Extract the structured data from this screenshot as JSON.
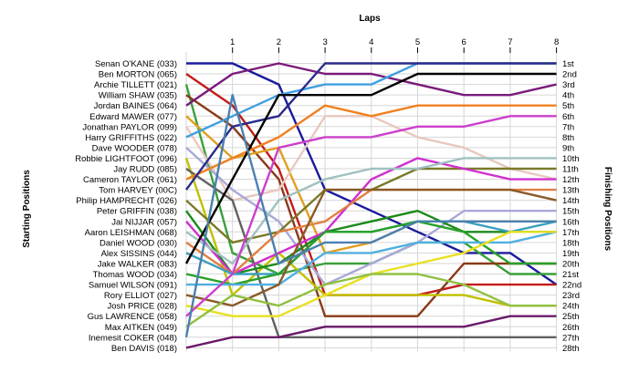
{
  "chart_data": {
    "type": "line",
    "title": "Laps",
    "ylabel_left": "Starting Positions",
    "ylabel_right": "Finishing Positions",
    "x_ticks": [
      "1",
      "2",
      "3",
      "4",
      "5",
      "6",
      "7",
      "8"
    ],
    "finish_labels": [
      "1st",
      "2nd",
      "3rd",
      "4th",
      "5th",
      "6th",
      "7th",
      "8th",
      "9th",
      "10th",
      "11th",
      "12th",
      "13th",
      "14th",
      "15th",
      "16th",
      "17th",
      "18th",
      "19th",
      "20th",
      "21st",
      "22nd",
      "23rd",
      "24th",
      "25th",
      "26th",
      "27th",
      "28th"
    ],
    "finish_label_positions": [
      1,
      2,
      3,
      4,
      5,
      6,
      7,
      8,
      9,
      10,
      11,
      12,
      13,
      14,
      15,
      16,
      17,
      18,
      19,
      20,
      21,
      22,
      23,
      24,
      25,
      26,
      27,
      28
    ],
    "drivers": [
      {
        "name": "Senan O'KANE (033)",
        "color": "#1a1a9e",
        "positions": [
          1,
          1,
          3,
          13,
          15,
          17,
          19,
          19,
          22
        ]
      },
      {
        "name": "Ben MORTON (065)",
        "color": "#c41a1a",
        "positions": [
          2,
          5,
          11,
          23,
          23,
          23,
          22,
          22,
          22
        ]
      },
      {
        "name": "Archie TILLETT (021)",
        "color": "#3aa03a",
        "positions": [
          3,
          19,
          21,
          20,
          20,
          18,
          18,
          21,
          21
        ]
      },
      {
        "name": "William SHAW (035)",
        "color": "#8a3a18",
        "positions": [
          4,
          7,
          12,
          25,
          25,
          25,
          20,
          20,
          20
        ]
      },
      {
        "name": "Jordan BAINES (064)",
        "color": "#7a1a7a",
        "positions": [
          5,
          2,
          1,
          2,
          2,
          3,
          4,
          4,
          3
        ]
      },
      {
        "name": "Edward MAWER (077)",
        "color": "#e0a020",
        "positions": [
          6,
          10,
          9,
          19,
          18,
          16,
          16,
          16,
          16
        ]
      },
      {
        "name": "Jonathan PAYLOR (099)",
        "color": "#e8c8c0",
        "positions": [
          7,
          14,
          13,
          6,
          6,
          8,
          9,
          11,
          12
        ]
      },
      {
        "name": "Harry GRIFFITHS (022)",
        "color": "#40a0e0",
        "positions": [
          8,
          6,
          4,
          3,
          3,
          1,
          1,
          1,
          1
        ]
      },
      {
        "name": "Dave WOODER (078)",
        "color": "#a8a8d8",
        "positions": [
          9,
          13,
          16,
          22,
          20,
          18,
          15,
          15,
          15
        ]
      },
      {
        "name": "Robbie LIGHTFOOT (096)",
        "color": "#c0c000",
        "positions": [
          10,
          23,
          19,
          23,
          23,
          23,
          23,
          24,
          24
        ]
      },
      {
        "name": "Jay RUDD (085)",
        "color": "#606060",
        "positions": [
          11,
          14,
          27,
          27,
          27,
          27,
          27,
          27,
          27
        ]
      },
      {
        "name": "Cameron TAYLOR (061)",
        "color": "#f08020",
        "positions": [
          12,
          10,
          8,
          5,
          6,
          5,
          5,
          5,
          5
        ]
      },
      {
        "name": "Tom HARVEY (00C)",
        "color": "#2a2a8a",
        "positions": [
          13,
          7,
          6,
          1,
          1,
          1,
          1,
          1,
          1
        ]
      },
      {
        "name": "Philip HAMPRECHT (026)",
        "color": "#7a7a2a",
        "positions": [
          14,
          18,
          17,
          13,
          13,
          11,
          11,
          11,
          11
        ]
      },
      {
        "name": "Peter GRIFFIN (038)",
        "color": "#1a8a1a",
        "positions": [
          15,
          21,
          20,
          17,
          16,
          15,
          17,
          17,
          17
        ]
      },
      {
        "name": "Jai NIJJAR (057)",
        "color": "#d030d0",
        "positions": [
          16,
          21,
          19,
          17,
          12,
          10,
          11,
          12,
          12
        ]
      },
      {
        "name": "Aaron LEISHMAN (068)",
        "color": "#a0c0c0",
        "positions": [
          17,
          20,
          14,
          12,
          11,
          11,
          10,
          10,
          10
        ]
      },
      {
        "name": "Daniel WOOD (030)",
        "color": "#e08040",
        "positions": [
          18,
          21,
          17,
          16,
          13,
          13,
          13,
          13,
          13
        ]
      },
      {
        "name": "Alex SISSINS (044)",
        "color": "#3aa0c0",
        "positions": [
          19,
          21,
          21,
          17,
          17,
          16,
          16,
          17,
          16
        ]
      },
      {
        "name": "Jake WALKER (083)",
        "color": "#000000",
        "positions": [
          20,
          12,
          4,
          4,
          4,
          2,
          2,
          2,
          2
        ]
      },
      {
        "name": "Thomas WOOD (034)",
        "color": "#28a028",
        "positions": [
          21,
          22,
          21,
          17,
          17,
          16,
          17,
          20,
          20
        ]
      },
      {
        "name": "Samuel WILSON (091)",
        "color": "#50b0e0",
        "positions": [
          22,
          22,
          22,
          19,
          19,
          18,
          18,
          18,
          17
        ]
      },
      {
        "name": "Rory ELLIOT (027)",
        "color": "#8a5a28",
        "positions": [
          23,
          24,
          22,
          13,
          13,
          13,
          13,
          13,
          14
        ]
      },
      {
        "name": "Josh PRICE (028)",
        "color": "#e8e020",
        "positions": [
          24,
          25,
          25,
          23,
          21,
          20,
          19,
          17,
          17
        ]
      },
      {
        "name": "Gus LAWRENCE (058)",
        "color": "#cc40cc",
        "positions": [
          25,
          21,
          9,
          8,
          8,
          7,
          7,
          6,
          6
        ]
      },
      {
        "name": "Max AITKEN (049)",
        "color": "#90c040",
        "positions": [
          26,
          23,
          24,
          22,
          21,
          21,
          22,
          24,
          24
        ]
      },
      {
        "name": "Inemesit COKER (048)",
        "color": "#4a80b0",
        "positions": [
          27,
          4,
          20,
          18,
          18,
          16,
          16,
          16,
          16
        ]
      },
      {
        "name": "Ben DAVIS (018)",
        "color": "#6a1a6a",
        "positions": [
          28,
          27,
          27,
          26,
          26,
          26,
          26,
          25,
          25
        ]
      }
    ]
  }
}
